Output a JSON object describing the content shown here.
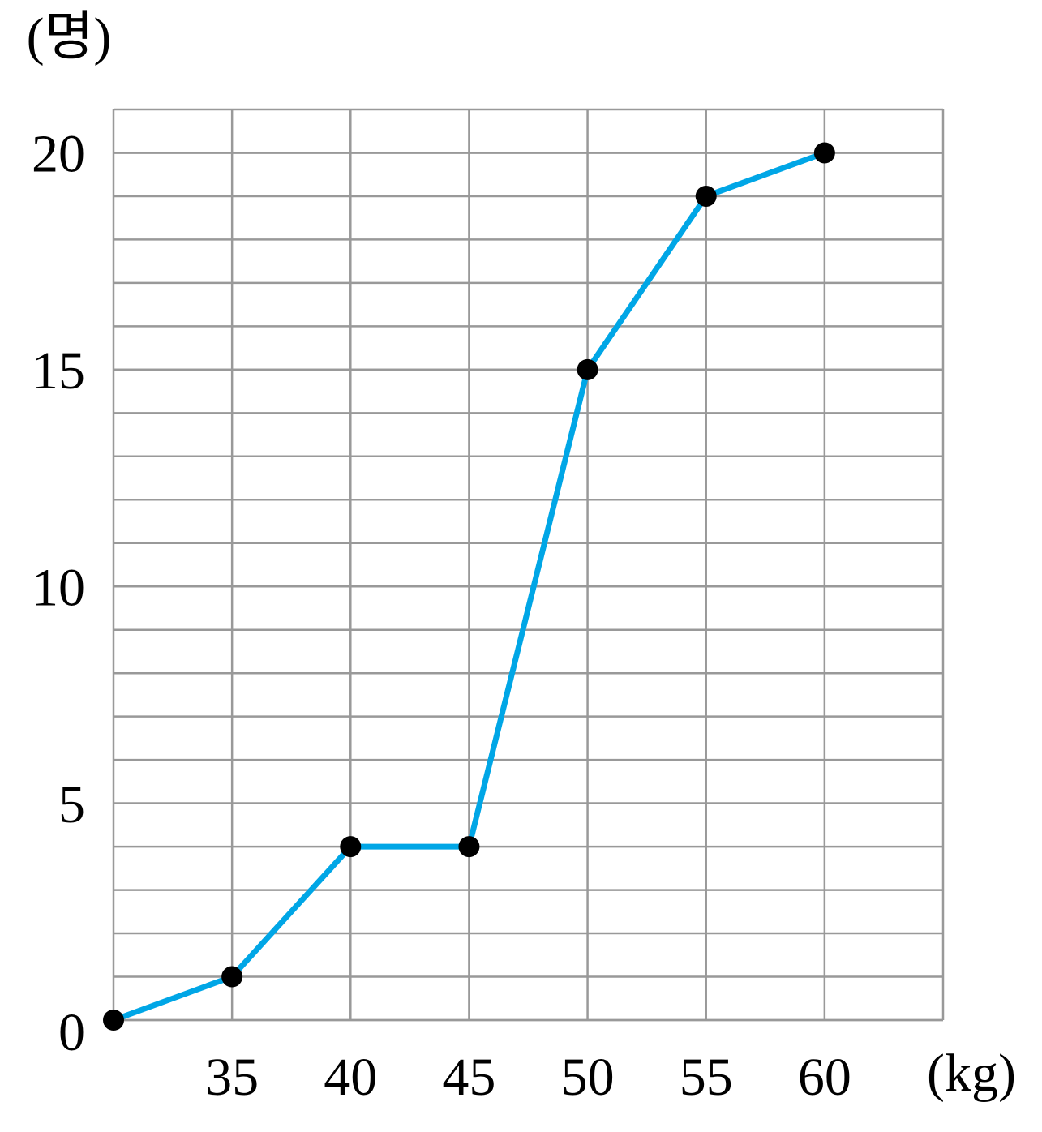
{
  "chart_data": {
    "type": "line",
    "y_unit_label": "(명)",
    "x_unit_label": "(kg)",
    "x": [
      30,
      35,
      40,
      45,
      50,
      55,
      60
    ],
    "series": [
      {
        "color": "#00a6e6",
        "values": [
          0,
          1,
          4,
          4,
          15,
          19,
          20
        ]
      }
    ],
    "xlim": [
      30,
      65
    ],
    "ylim": [
      0,
      21
    ],
    "xticks": [
      35,
      40,
      45,
      50,
      55,
      60
    ],
    "yticks": [
      0,
      5,
      10,
      15,
      20
    ],
    "grid": true,
    "xgrid_step": 5,
    "ygrid_step": 1,
    "marker_color": "#000000"
  }
}
